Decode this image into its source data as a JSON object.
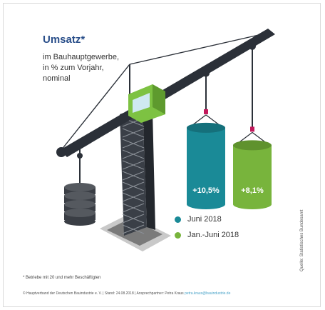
{
  "header": {
    "title": "Umsatz*",
    "subtitle_lines": [
      "im Bauhauptgewerbe,",
      "in % zum Vorjahr,",
      "nominal"
    ]
  },
  "legend": {
    "items": [
      {
        "label": "Juni 2018",
        "color": "#1a8a97"
      },
      {
        "label": "Jan.-Juni 2018",
        "color": "#78b43c"
      }
    ]
  },
  "source": "Quelle: Statistisches Bundesamt",
  "footnote": "* Betriebe mit 20 und mehr Beschäftigten",
  "footer": {
    "text": "© Hauptverband der Deutschen Bauindustrie e. V. | Stand: 24.08.2018 | Ansprechpartner: Petra Kraus",
    "link": "petra.kraus@bauindustrie.de"
  },
  "colors": {
    "crane": "#2b3038",
    "counterweight": "#3a3e45",
    "cabin": "#7dc242",
    "hook": "#c2185b"
  },
  "chart_data": {
    "type": "bar",
    "title": "Umsatz*",
    "subtitle": "im Bauhauptgewerbe, in % zum Vorjahr, nominal",
    "categories": [
      "Juni 2018",
      "Jan.-Juni 2018"
    ],
    "values": [
      10.5,
      8.1
    ],
    "value_labels": [
      "+10,5%",
      "+8,1%"
    ],
    "colors": [
      "#1a8a97",
      "#78b43c"
    ],
    "unit": "%"
  }
}
